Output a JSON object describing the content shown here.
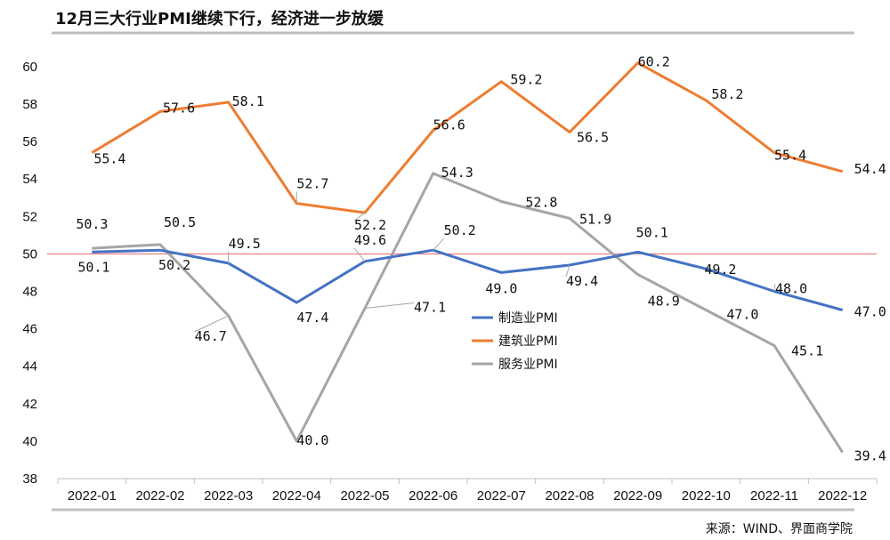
{
  "chart_data": {
    "type": "line",
    "title": "12月三大行业PMI继续下行，经济进一步放缓",
    "source": "来源：WIND、界面商学院",
    "categories": [
      "2022-01",
      "2022-02",
      "2022-03",
      "2022-04",
      "2022-05",
      "2022-06",
      "2022-07",
      "2022-08",
      "2022-09",
      "2022-10",
      "2022-11",
      "2022-12"
    ],
    "ylim": [
      38,
      62
    ],
    "yticks": [
      38,
      40,
      42,
      44,
      46,
      48,
      50,
      52,
      54,
      56,
      58,
      60
    ],
    "reference_line": 50,
    "series": [
      {
        "name": "制造业PMI",
        "color": "#4472C4",
        "values": [
          50.1,
          50.2,
          49.5,
          47.4,
          49.6,
          50.2,
          49.0,
          49.4,
          50.1,
          49.2,
          48.0,
          47.0
        ]
      },
      {
        "name": "建筑业PMI",
        "color": "#ED7D31",
        "values": [
          55.4,
          57.6,
          58.1,
          52.7,
          52.2,
          56.6,
          59.2,
          56.5,
          60.2,
          58.2,
          55.4,
          54.4
        ]
      },
      {
        "name": "服务业PMI",
        "color": "#A5A5A5",
        "values": [
          50.3,
          50.5,
          46.7,
          40.0,
          47.1,
          54.3,
          52.8,
          51.9,
          48.9,
          47.0,
          45.1,
          39.4
        ]
      }
    ],
    "grid": false,
    "legend": "center"
  }
}
